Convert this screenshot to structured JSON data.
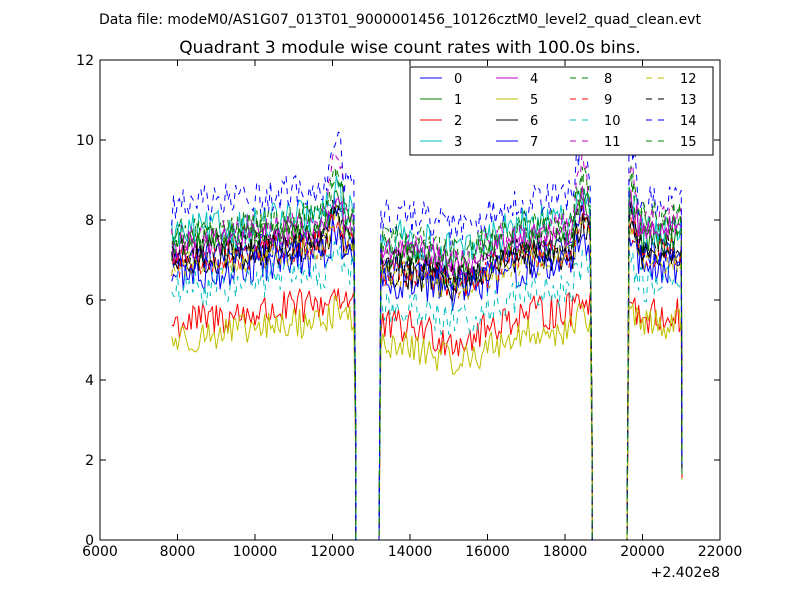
{
  "header": {
    "supertitle": "Data file: modeM0/AS1G07_013T01_9000001456_10126cztM0_level2_quad_clean.evt"
  },
  "chart_data": {
    "type": "line",
    "title": "Quadrant 3 module wise count rates with 100.0s bins.",
    "xlabel": "",
    "ylabel": "",
    "x_offset_label": "+2.402e8",
    "xlim": [
      6000,
      22000
    ],
    "ylim": [
      0,
      12
    ],
    "x_ticks": [
      6000,
      8000,
      10000,
      12000,
      14000,
      16000,
      18000,
      20000,
      22000
    ],
    "y_ticks": [
      0,
      2,
      4,
      6,
      8,
      10,
      12
    ],
    "grid": false,
    "legend_position": "top-right",
    "legend_columns": 4,
    "segments": [
      {
        "start": 7850,
        "end": 12550
      },
      {
        "start": 13250,
        "end": 18650
      },
      {
        "start": 19650,
        "end": 21000
      }
    ],
    "gap_bottom_x": [
      [
        12600,
        13200
      ],
      [
        18700,
        19600
      ]
    ],
    "series": [
      {
        "name": "0",
        "color": "#0000ff",
        "dash": "solid",
        "level_seg1": 7.0,
        "level_seg2": 6.8,
        "level_seg3": 7.2,
        "peak": 8.6
      },
      {
        "name": "1",
        "color": "#008000",
        "dash": "solid",
        "level_seg1": 7.3,
        "level_seg2": 7.0,
        "level_seg3": 7.5,
        "peak": 8.8
      },
      {
        "name": "2",
        "color": "#ff0000",
        "dash": "solid",
        "level_seg1": 5.4,
        "level_seg2": 5.3,
        "level_seg3": 5.6,
        "peak": 6.3
      },
      {
        "name": "3",
        "color": "#00bfbf",
        "dash": "solid",
        "level_seg1": 7.6,
        "level_seg2": 7.5,
        "level_seg3": 7.7,
        "peak": 9.0
      },
      {
        "name": "4",
        "color": "#bf00bf",
        "dash": "solid",
        "level_seg1": 7.3,
        "level_seg2": 7.2,
        "level_seg3": 7.8,
        "peak": 8.8
      },
      {
        "name": "5",
        "color": "#bfbf00",
        "dash": "solid",
        "level_seg1": 5.0,
        "level_seg2": 4.8,
        "level_seg3": 5.4,
        "peak": 5.8
      },
      {
        "name": "6",
        "color": "#000000",
        "dash": "solid",
        "level_seg1": 6.9,
        "level_seg2": 6.7,
        "level_seg3": 7.1,
        "peak": 8.4
      },
      {
        "name": "7",
        "color": "#0000ff",
        "dash": "solid",
        "level_seg1": 6.6,
        "level_seg2": 6.5,
        "level_seg3": 6.9,
        "peak": 8.0
      },
      {
        "name": "8",
        "color": "#008000",
        "dash": "dashed",
        "level_seg1": 7.6,
        "level_seg2": 7.5,
        "level_seg3": 8.0,
        "peak": 9.5
      },
      {
        "name": "9",
        "color": "#ff0000",
        "dash": "dashed",
        "level_seg1": 6.9,
        "level_seg2": 6.7,
        "level_seg3": 7.2,
        "peak": 8.2
      },
      {
        "name": "10",
        "color": "#00bfbf",
        "dash": "dashed",
        "level_seg1": 6.2,
        "level_seg2": 5.8,
        "level_seg3": 6.4,
        "peak": 7.2
      },
      {
        "name": "11",
        "color": "#bf00bf",
        "dash": "dashed",
        "level_seg1": 7.4,
        "level_seg2": 7.3,
        "level_seg3": 7.9,
        "peak": 10.2
      },
      {
        "name": "12",
        "color": "#bfbf00",
        "dash": "dashed",
        "level_seg1": 6.8,
        "level_seg2": 6.6,
        "level_seg3": 7.0,
        "peak": 8.3
      },
      {
        "name": "13",
        "color": "#000000",
        "dash": "dashed",
        "level_seg1": 7.1,
        "level_seg2": 6.9,
        "level_seg3": 7.3,
        "peak": 8.6
      },
      {
        "name": "14",
        "color": "#0000ff",
        "dash": "dashed",
        "level_seg1": 8.3,
        "level_seg2": 8.1,
        "level_seg3": 8.5,
        "peak": 10.8
      },
      {
        "name": "15",
        "color": "#008000",
        "dash": "dashed",
        "level_seg1": 7.5,
        "level_seg2": 7.4,
        "level_seg3": 8.0,
        "peak": 9.3
      }
    ]
  }
}
